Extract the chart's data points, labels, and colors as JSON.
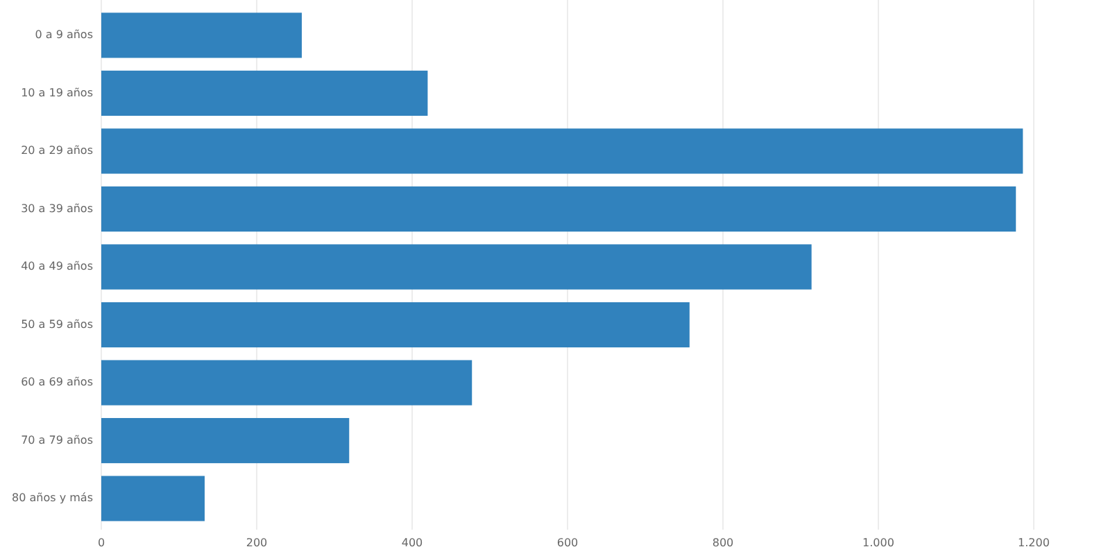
{
  "chart_data": {
    "type": "bar",
    "orientation": "horizontal",
    "categories": [
      "0 a 9 años",
      "10 a 19 años",
      "20 a 29 años",
      "30 a 39 años",
      "40 a 49 años",
      "50 a 59 años",
      "60 a 69 años",
      "70 a 79 años",
      "80 años y más"
    ],
    "values": [
      258,
      420,
      1186,
      1177,
      914,
      757,
      477,
      319,
      133
    ],
    "color": "#3182bd",
    "xlim": [
      0,
      1200
    ],
    "xticks": [
      0,
      200,
      400,
      600,
      800,
      {
        "value": 1000,
        "label": "1.000"
      },
      {
        "value": 1200,
        "label": "1.200"
      }
    ],
    "grid": "x"
  }
}
